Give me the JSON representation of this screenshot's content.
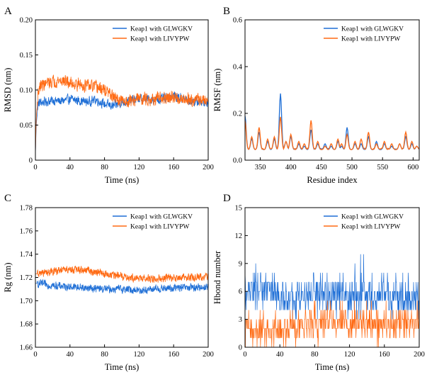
{
  "colors": {
    "series1": "#1f6fd6",
    "series2": "#ff6a13"
  },
  "chart_data": [
    {
      "type": "line",
      "panel": "A",
      "xlabel": "Time (ns)",
      "ylabel": "RMSD (nm)",
      "xlim": [
        0,
        200
      ],
      "ylim": [
        0,
        0.2
      ],
      "xticks": [
        0,
        40,
        80,
        120,
        160,
        200
      ],
      "yticks": [
        "0",
        "0.05",
        "0.10",
        "0.15",
        "0.20"
      ],
      "yticks_values": [
        0,
        0.05,
        0.1,
        0.15,
        0.2
      ],
      "legend_position": "top-right",
      "series": [
        {
          "name": "Keap1 with GLWGKV",
          "color": "#1f6fd6",
          "x": [
            0,
            1,
            3,
            5,
            10,
            20,
            30,
            40,
            50,
            60,
            70,
            80,
            90,
            100,
            110,
            120,
            130,
            140,
            150,
            160,
            170,
            180,
            190,
            200
          ],
          "values": [
            0.01,
            0.05,
            0.08,
            0.082,
            0.083,
            0.085,
            0.084,
            0.087,
            0.085,
            0.083,
            0.086,
            0.08,
            0.077,
            0.082,
            0.085,
            0.088,
            0.087,
            0.086,
            0.088,
            0.092,
            0.088,
            0.084,
            0.083,
            0.082
          ],
          "noise": 0.009
        },
        {
          "name": "Keap1 with LIVYPW",
          "color": "#ff6a13",
          "x": [
            0,
            1,
            3,
            5,
            10,
            20,
            30,
            40,
            50,
            60,
            70,
            80,
            90,
            100,
            110,
            120,
            130,
            140,
            150,
            160,
            170,
            180,
            190,
            200
          ],
          "values": [
            0.01,
            0.06,
            0.095,
            0.105,
            0.108,
            0.112,
            0.114,
            0.11,
            0.108,
            0.106,
            0.104,
            0.1,
            0.09,
            0.083,
            0.085,
            0.088,
            0.087,
            0.087,
            0.088,
            0.089,
            0.088,
            0.087,
            0.086,
            0.085
          ],
          "noise": 0.012
        }
      ]
    },
    {
      "type": "line",
      "panel": "B",
      "xlabel": "Residue index",
      "ylabel": "RMSF (nm)",
      "xlim": [
        325,
        610
      ],
      "ylim": [
        0,
        0.6
      ],
      "xticks": [
        350,
        400,
        450,
        500,
        550,
        600
      ],
      "yticks": [
        "0.0",
        "0.2",
        "0.4",
        "0.6"
      ],
      "yticks_values": [
        0,
        0.2,
        0.4,
        0.6
      ],
      "legend_position": "top-right",
      "baseline": 0.045,
      "series": [
        {
          "name": "Keap1 with GLWGKV",
          "color": "#1f6fd6",
          "peaks": [
            [
              325,
              0.19
            ],
            [
              336,
              0.09
            ],
            [
              348,
              0.12
            ],
            [
              362,
              0.08
            ],
            [
              373,
              0.09
            ],
            [
              383,
              0.285
            ],
            [
              392,
              0.08
            ],
            [
              400,
              0.1
            ],
            [
              413,
              0.07
            ],
            [
              422,
              0.06
            ],
            [
              433,
              0.13
            ],
            [
              444,
              0.07
            ],
            [
              456,
              0.07
            ],
            [
              466,
              0.06
            ],
            [
              477,
              0.08
            ],
            [
              483,
              0.06
            ],
            [
              492,
              0.14
            ],
            [
              505,
              0.07
            ],
            [
              515,
              0.07
            ],
            [
              527,
              0.1
            ],
            [
              540,
              0.08
            ],
            [
              553,
              0.07
            ],
            [
              565,
              0.06
            ],
            [
              578,
              0.07
            ],
            [
              588,
              0.1
            ],
            [
              598,
              0.07
            ],
            [
              606,
              0.06
            ]
          ]
        },
        {
          "name": "Keap1 with LIVYPW",
          "color": "#ff6a13",
          "peaks": [
            [
              325,
              0.17
            ],
            [
              336,
              0.1
            ],
            [
              348,
              0.14
            ],
            [
              362,
              0.09
            ],
            [
              373,
              0.1
            ],
            [
              383,
              0.185
            ],
            [
              392,
              0.08
            ],
            [
              400,
              0.11
            ],
            [
              413,
              0.08
            ],
            [
              422,
              0.07
            ],
            [
              433,
              0.17
            ],
            [
              444,
              0.08
            ],
            [
              456,
              0.06
            ],
            [
              466,
              0.07
            ],
            [
              477,
              0.09
            ],
            [
              483,
              0.07
            ],
            [
              492,
              0.11
            ],
            [
              505,
              0.08
            ],
            [
              515,
              0.09
            ],
            [
              527,
              0.12
            ],
            [
              540,
              0.07
            ],
            [
              553,
              0.08
            ],
            [
              565,
              0.07
            ],
            [
              578,
              0.07
            ],
            [
              588,
              0.12
            ],
            [
              598,
              0.08
            ],
            [
              606,
              0.06
            ]
          ]
        }
      ]
    },
    {
      "type": "line",
      "panel": "C",
      "xlabel": "Time (ns)",
      "ylabel": "Rg (nm)",
      "xlim": [
        0,
        200
      ],
      "ylim": [
        1.66,
        1.78
      ],
      "xticks": [
        0,
        40,
        80,
        120,
        160,
        200
      ],
      "yticks": [
        "1.66",
        "1.68",
        "1.70",
        "1.72",
        "1.74",
        "1.76",
        "1.78"
      ],
      "yticks_values": [
        1.66,
        1.68,
        1.7,
        1.72,
        1.74,
        1.76,
        1.78
      ],
      "legend_position": "top-right",
      "series": [
        {
          "name": "Keap1 with GLWGKV",
          "color": "#1f6fd6",
          "x": [
            0,
            20,
            40,
            60,
            80,
            100,
            120,
            140,
            160,
            180,
            200
          ],
          "values": [
            1.715,
            1.713,
            1.712,
            1.711,
            1.71,
            1.71,
            1.709,
            1.71,
            1.711,
            1.711,
            1.712
          ],
          "noise": 0.0045
        },
        {
          "name": "Keap1 with LIVYPW",
          "color": "#ff6a13",
          "x": [
            0,
            20,
            40,
            60,
            80,
            100,
            120,
            140,
            160,
            180,
            200
          ],
          "values": [
            1.723,
            1.725,
            1.727,
            1.726,
            1.723,
            1.721,
            1.719,
            1.719,
            1.72,
            1.72,
            1.721
          ],
          "noise": 0.0045
        }
      ]
    },
    {
      "type": "line",
      "panel": "D",
      "xlabel": "Time (ns)",
      "ylabel": "Hbond number",
      "xlim": [
        0,
        200
      ],
      "ylim": [
        0,
        15
      ],
      "xticks": [
        0,
        40,
        80,
        120,
        160,
        200
      ],
      "yticks": [
        "0",
        "3",
        "6",
        "9",
        "12",
        "15"
      ],
      "yticks_values": [
        0,
        3,
        6,
        9,
        12,
        15
      ],
      "legend_position": "top-right",
      "series": [
        {
          "name": "Keap1 with GLWGKV",
          "color": "#1f6fd6",
          "x": [
            0,
            20,
            40,
            60,
            80,
            100,
            120,
            140,
            160,
            180,
            200
          ],
          "values": [
            5.5,
            6.5,
            5.5,
            5.0,
            5.8,
            5.5,
            5.6,
            5.8,
            5.5,
            5.3,
            5.4
          ],
          "spread": 2.2,
          "max": 11
        },
        {
          "name": "Keap1 with LIVYPW",
          "color": "#ff6a13",
          "x": [
            0,
            20,
            40,
            60,
            80,
            100,
            120,
            140,
            160,
            180,
            200
          ],
          "values": [
            2.0,
            1.8,
            1.8,
            2.3,
            2.8,
            2.8,
            2.7,
            2.5,
            2.6,
            2.7,
            2.7
          ],
          "spread": 1.8,
          "max": 6
        }
      ]
    }
  ]
}
